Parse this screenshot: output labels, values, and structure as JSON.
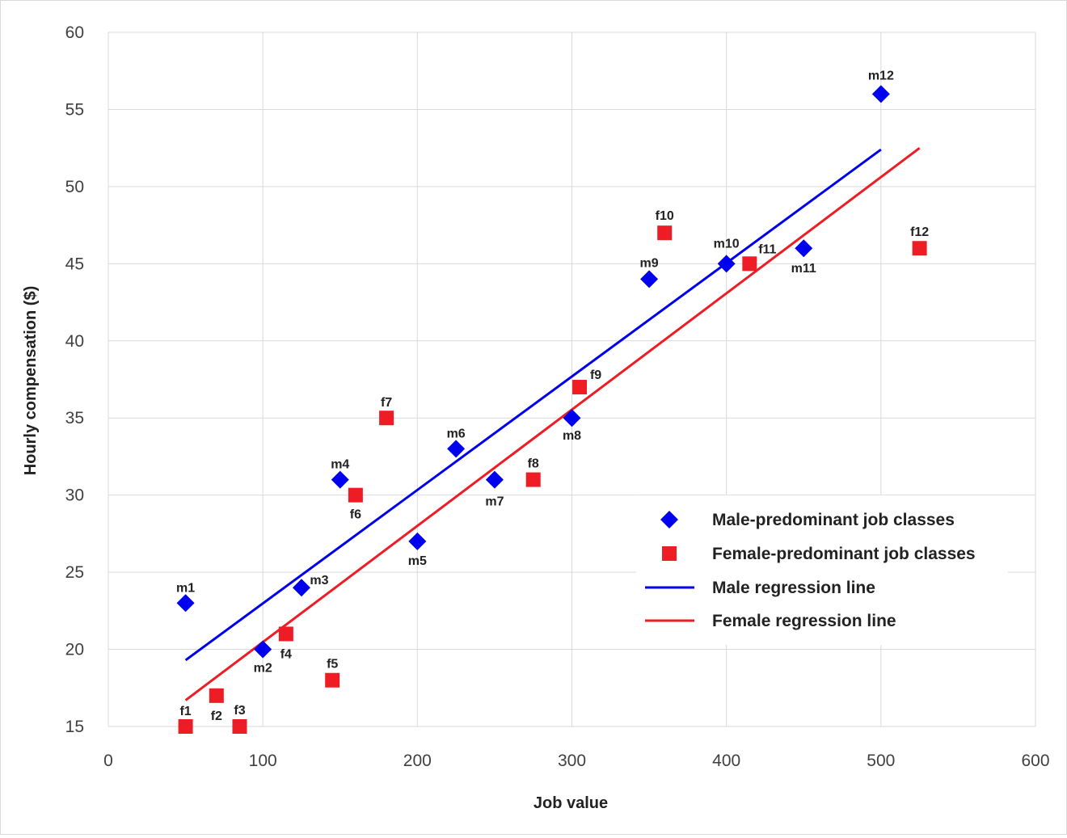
{
  "chart_data": {
    "type": "scatter",
    "xlabel": "Job value",
    "ylabel": "Hourly compensation ($)",
    "xlim": [
      0,
      600
    ],
    "ylim": [
      15,
      60
    ],
    "x_ticks": [
      0,
      100,
      200,
      300,
      400,
      500,
      600
    ],
    "y_ticks": [
      15,
      20,
      25,
      30,
      35,
      40,
      45,
      50,
      55,
      60
    ],
    "grid": true,
    "legend_position": "lower-right",
    "colors": {
      "male": "#0000ee",
      "female": "#ee1c24",
      "grid": "#d9d9d9",
      "axis_text": "#404040"
    },
    "series": [
      {
        "name": "Male-predominant job classes",
        "marker": "diamond",
        "points": [
          {
            "label": "m1",
            "x": 50,
            "y": 23
          },
          {
            "label": "m2",
            "x": 100,
            "y": 20
          },
          {
            "label": "m3",
            "x": 125,
            "y": 24
          },
          {
            "label": "m4",
            "x": 150,
            "y": 31
          },
          {
            "label": "m5",
            "x": 200,
            "y": 27
          },
          {
            "label": "m6",
            "x": 225,
            "y": 33
          },
          {
            "label": "m7",
            "x": 250,
            "y": 31
          },
          {
            "label": "m8",
            "x": 300,
            "y": 35
          },
          {
            "label": "m9",
            "x": 350,
            "y": 44
          },
          {
            "label": "m10",
            "x": 400,
            "y": 45
          },
          {
            "label": "m11",
            "x": 450,
            "y": 46
          },
          {
            "label": "m12",
            "x": 500,
            "y": 56
          }
        ]
      },
      {
        "name": "Female-predominant job classes",
        "marker": "square",
        "points": [
          {
            "label": "f1",
            "x": 50,
            "y": 15
          },
          {
            "label": "f2",
            "x": 70,
            "y": 17
          },
          {
            "label": "f3",
            "x": 85,
            "y": 15
          },
          {
            "label": "f4",
            "x": 115,
            "y": 21
          },
          {
            "label": "f5",
            "x": 145,
            "y": 18
          },
          {
            "label": "f6",
            "x": 160,
            "y": 30
          },
          {
            "label": "f7",
            "x": 180,
            "y": 35
          },
          {
            "label": "f8",
            "x": 275,
            "y": 31
          },
          {
            "label": "f9",
            "x": 305,
            "y": 37
          },
          {
            "label": "f10",
            "x": 360,
            "y": 47
          },
          {
            "label": "f11",
            "x": 415,
            "y": 45
          },
          {
            "label": "f12",
            "x": 525,
            "y": 46
          }
        ]
      }
    ],
    "regression_lines": [
      {
        "name": "Male regression line",
        "x": [
          50,
          500
        ],
        "y": [
          19.3,
          52.4
        ]
      },
      {
        "name": "Female regression line",
        "x": [
          50,
          525
        ],
        "y": [
          16.7,
          52.5
        ]
      }
    ]
  }
}
